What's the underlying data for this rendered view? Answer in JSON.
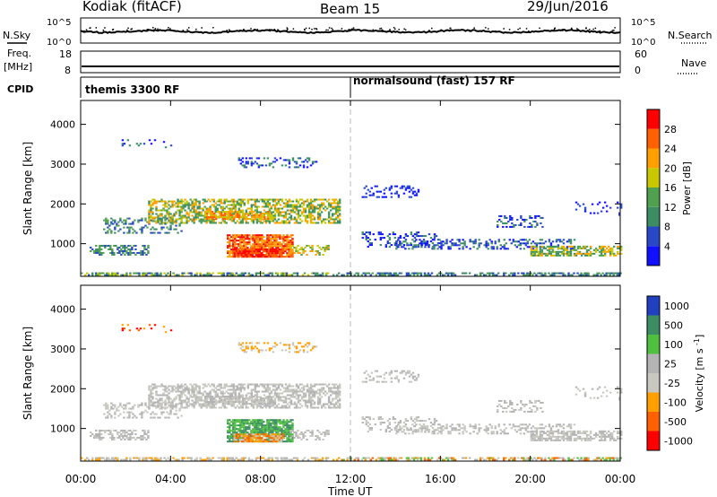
{
  "header": {
    "station": "Kodiak (fitACF)",
    "beam": "Beam 15",
    "date": "29/Jun/2016"
  },
  "top_panels": {
    "nsky_label": "N.Sky",
    "nsearch_label": "N.Search",
    "count_ticks": [
      "10^5",
      "10^0"
    ],
    "freq_label": "Freq.",
    "freq_unit": "[MHz]",
    "freq_ticks": [
      "18",
      "8"
    ],
    "nave_label": "Nave",
    "nave_ticks": [
      "60",
      "0"
    ],
    "cpid_label": "CPID",
    "cpid_segments": [
      {
        "label": "themis 3300 RF",
        "start_hour": 0
      },
      {
        "label": "normalsound (fast) 157 RF",
        "start_hour": 12
      }
    ]
  },
  "colors": {
    "power": [
      "#1010ff",
      "#2848c8",
      "#3c8c64",
      "#50a050",
      "#c8c800",
      "#ffa000",
      "#ff6000",
      "#ff0000"
    ],
    "velocity": [
      "#2040c0",
      "#3c8c64",
      "#50c040",
      "#b4b4b4",
      "#c8c8c0",
      "#ffa000",
      "#ff6000",
      "#ff0000"
    ]
  },
  "chart_data": [
    {
      "type": "heatmap",
      "name": "power",
      "ylabel": "Slant Range [km]",
      "ylim": [
        180,
        4600
      ],
      "yticks": [
        "1000",
        "2000",
        "3000",
        "4000"
      ],
      "xlim": [
        0,
        24
      ],
      "colorbar_label": "Power [dB]",
      "colorbar_ticks": [
        "4",
        "8",
        "12",
        "16",
        "20",
        "24",
        "28"
      ],
      "colorbar_range": [
        0,
        32
      ]
    },
    {
      "type": "heatmap",
      "name": "velocity",
      "ylabel": "Slant Range [km]",
      "ylim": [
        180,
        4600
      ],
      "yticks": [
        "1000",
        "2000",
        "3000",
        "4000"
      ],
      "xlim": [
        0,
        24
      ],
      "colorbar_label": "Velocity [m s^-1]",
      "colorbar_ticks": [
        "1000",
        "500",
        "100",
        "25",
        "-25",
        "-100",
        "-500",
        "-1000"
      ]
    }
  ],
  "xaxis": {
    "ticks": [
      "00:00",
      "04:00",
      "08:00",
      "12:00",
      "16:00",
      "20:00",
      "00:00"
    ],
    "label": "Time UT"
  }
}
